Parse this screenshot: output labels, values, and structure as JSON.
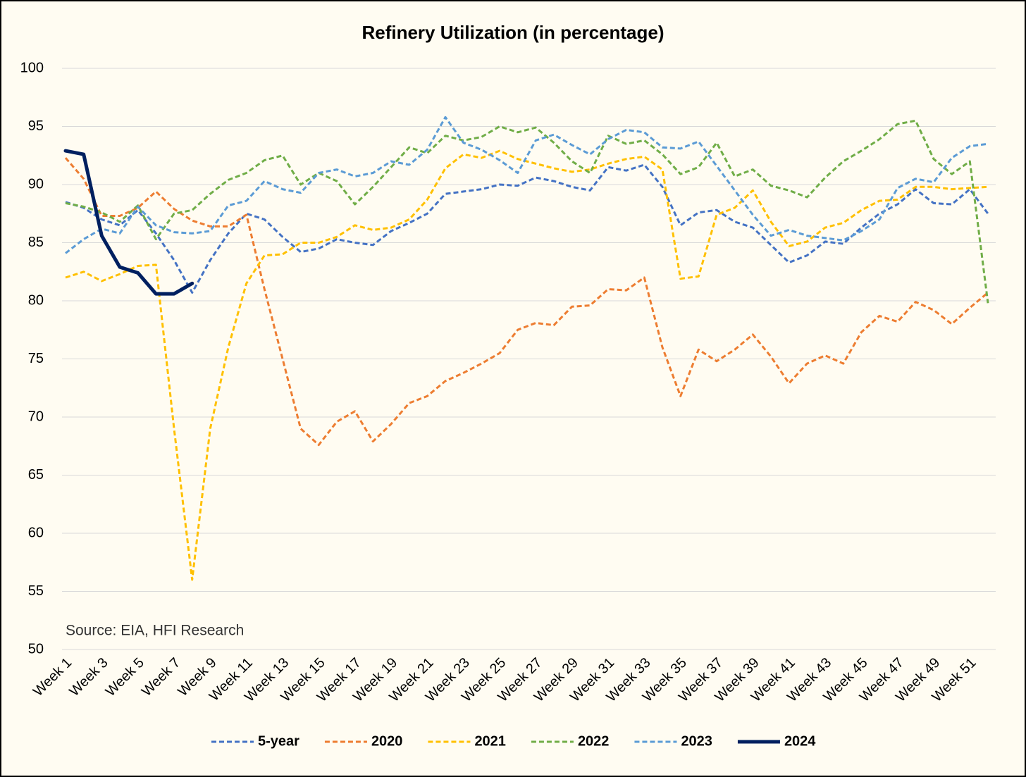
{
  "chart_data": {
    "type": "line",
    "title": "Refinery Utilization (in percentage)",
    "annotation": "Source: EIA, HFI Research",
    "categories": [
      "Week 1",
      null,
      "Week 3",
      null,
      "Week 5",
      null,
      "Week 7",
      null,
      "Week 9",
      null,
      "Week 11",
      null,
      "Week 13",
      null,
      "Week 15",
      null,
      "Week 17",
      null,
      "Week 19",
      null,
      "Week 21",
      null,
      "Week 23",
      null,
      "Week 25",
      null,
      "Week 27",
      null,
      "Week 29",
      null,
      "Week 31",
      null,
      "Week 33",
      null,
      "Week 35",
      null,
      "Week 37",
      null,
      "Week 39",
      null,
      "Week 41",
      null,
      "Week 43",
      null,
      "Week 45",
      null,
      "Week 47",
      null,
      "Week 49",
      null,
      "Week 51",
      null
    ],
    "ylim": [
      50,
      100
    ],
    "yticks": [
      50,
      55,
      60,
      65,
      70,
      75,
      80,
      85,
      90,
      95,
      100
    ],
    "grid": true,
    "legend": "bottom",
    "series": [
      {
        "name": "5-year",
        "color": "#4472c4",
        "dashed": true,
        "values": [
          88.5,
          88.0,
          87.0,
          86.5,
          87.8,
          85.8,
          83.5,
          80.7,
          83.5,
          85.8,
          87.5,
          87.0,
          85.5,
          84.2,
          84.5,
          85.3,
          85.0,
          84.8,
          86.0,
          86.7,
          87.5,
          89.2,
          89.4,
          89.6,
          90.0,
          89.9,
          90.6,
          90.3,
          89.8,
          89.5,
          91.5,
          91.2,
          91.7,
          89.8,
          86.5,
          87.6,
          87.8,
          86.8,
          86.3,
          84.8,
          83.3,
          83.9,
          85.1,
          84.9,
          86.3,
          87.5,
          88.3,
          89.6,
          88.4,
          88.3,
          89.6,
          87.5
        ]
      },
      {
        "name": "2020",
        "color": "#ed7d31",
        "dashed": true,
        "values": [
          92.3,
          90.5,
          87.3,
          87.3,
          88.0,
          89.4,
          87.9,
          86.9,
          86.4,
          86.4,
          87.4,
          81.0,
          75.0,
          69.0,
          67.6,
          69.6,
          70.5,
          67.9,
          69.4,
          71.2,
          71.8,
          73.1,
          73.8,
          74.6,
          75.5,
          77.5,
          78.1,
          77.9,
          79.5,
          79.6,
          81.0,
          80.9,
          82.0,
          76.0,
          71.8,
          75.8,
          74.8,
          75.8,
          77.1,
          75.2,
          72.9,
          74.6,
          75.3,
          74.6,
          77.3,
          78.7,
          78.2,
          79.9,
          79.2,
          78.0,
          79.4,
          80.7
        ]
      },
      {
        "name": "2021",
        "color": "#ffc000",
        "dashed": true,
        "values": [
          82.0,
          82.5,
          81.7,
          82.3,
          83.0,
          83.1,
          69.0,
          56.0,
          69.0,
          76.0,
          81.5,
          83.9,
          84.0,
          85.0,
          85.0,
          85.5,
          86.5,
          86.1,
          86.3,
          87.0,
          88.7,
          91.4,
          92.6,
          92.3,
          92.9,
          92.2,
          91.8,
          91.4,
          91.1,
          91.3,
          91.8,
          92.2,
          92.4,
          91.3,
          81.9,
          82.1,
          87.4,
          88.0,
          89.5,
          86.8,
          84.7,
          85.1,
          86.3,
          86.7,
          87.8,
          88.6,
          88.7,
          89.8,
          89.8,
          89.6,
          89.7,
          89.8
        ]
      },
      {
        "name": "2022",
        "color": "#70ad47",
        "dashed": true,
        "values": [
          88.4,
          88.1,
          87.6,
          86.8,
          88.2,
          85.3,
          87.5,
          87.8,
          89.2,
          90.4,
          91.0,
          92.1,
          92.5,
          90.0,
          91.0,
          90.3,
          88.3,
          89.8,
          91.5,
          93.2,
          92.7,
          94.2,
          93.8,
          94.1,
          95.0,
          94.5,
          94.9,
          93.6,
          92.0,
          91.0,
          94.2,
          93.5,
          93.8,
          92.6,
          90.9,
          91.5,
          93.6,
          90.7,
          91.3,
          89.9,
          89.5,
          88.9,
          90.6,
          92.0,
          92.9,
          93.9,
          95.2,
          95.5,
          92.2,
          90.9,
          92.0,
          79.8
        ]
      },
      {
        "name": "2023",
        "color": "#5b9bd5",
        "dashed": true,
        "values": [
          84.1,
          85.3,
          86.2,
          85.8,
          88.1,
          86.5,
          85.9,
          85.8,
          86.0,
          88.2,
          88.6,
          90.3,
          89.6,
          89.3,
          91.0,
          91.3,
          90.7,
          91.0,
          92.0,
          91.7,
          93.0,
          95.8,
          93.6,
          93.0,
          92.1,
          91.0,
          93.8,
          94.3,
          93.4,
          92.6,
          93.9,
          94.7,
          94.5,
          93.2,
          93.1,
          93.7,
          91.6,
          89.5,
          87.4,
          85.6,
          86.1,
          85.6,
          85.4,
          85.2,
          86.0,
          87.0,
          89.7,
          90.5,
          90.2,
          92.3,
          93.3,
          93.5
        ]
      },
      {
        "name": "2024",
        "color": "#002060",
        "dashed": false,
        "values": [
          92.9,
          92.6,
          85.6,
          82.9,
          82.4,
          80.6,
          80.6,
          81.5,
          null,
          null,
          null,
          null,
          null,
          null,
          null,
          null,
          null,
          null,
          null,
          null,
          null,
          null,
          null,
          null,
          null,
          null,
          null,
          null,
          null,
          null,
          null,
          null,
          null,
          null,
          null,
          null,
          null,
          null,
          null,
          null,
          null,
          null,
          null,
          null,
          null,
          null,
          null,
          null,
          null,
          null,
          null,
          null
        ]
      }
    ]
  }
}
